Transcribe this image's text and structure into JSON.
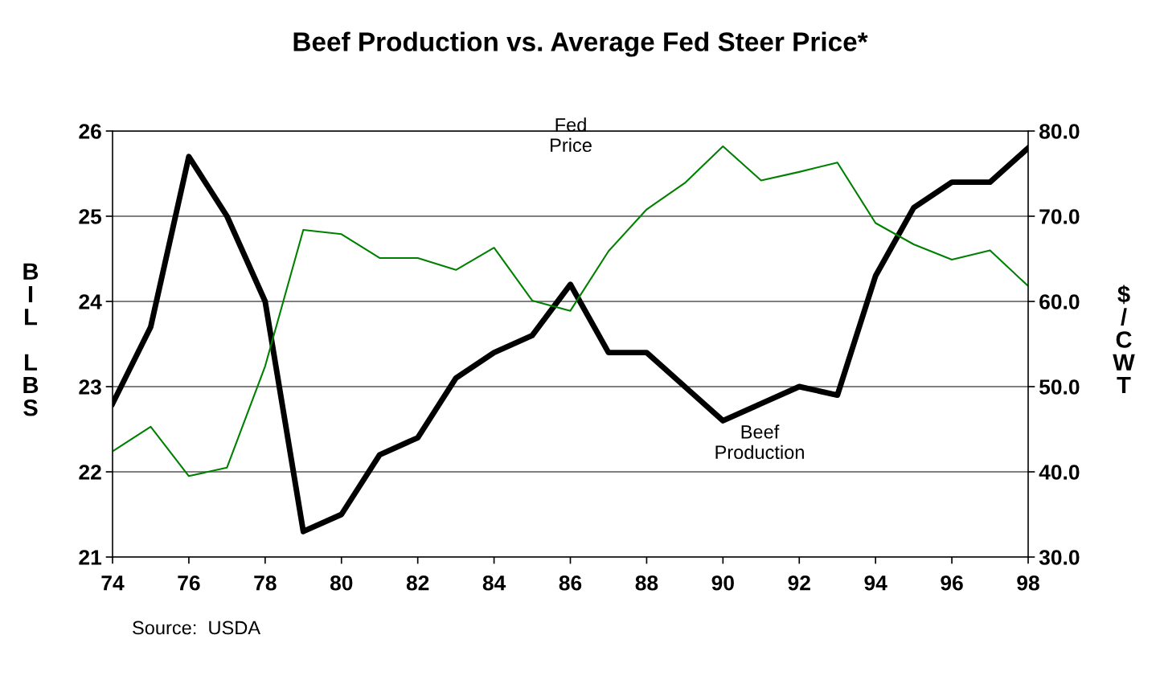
{
  "chart_data": {
    "type": "line",
    "title": "Beef Production vs. Average Fed Steer Price*",
    "ylabel": "BIL LBS",
    "y2label": "$/CWT",
    "x": [
      74,
      75,
      76,
      77,
      78,
      79,
      80,
      81,
      82,
      83,
      84,
      85,
      86,
      87,
      88,
      89,
      90,
      91,
      92,
      93,
      94,
      95,
      96,
      97,
      98
    ],
    "xlim": [
      74,
      98
    ],
    "xticks": [
      74,
      76,
      78,
      80,
      82,
      84,
      86,
      88,
      90,
      92,
      94,
      96,
      98
    ],
    "ylim": [
      21,
      26
    ],
    "yticks": [
      21,
      22,
      23,
      24,
      25,
      26
    ],
    "y2lim": [
      30,
      80
    ],
    "y2ticks": [
      {
        "value": 30,
        "label": "30.0"
      },
      {
        "value": 40,
        "label": "40.0"
      },
      {
        "value": 50,
        "label": "50.0"
      },
      {
        "value": 60,
        "label": "60.0"
      },
      {
        "value": 70,
        "label": "70.0"
      },
      {
        "value": 80,
        "label": "80.0"
      }
    ],
    "grid": "y",
    "legend": false,
    "marker": "none",
    "line_style": "solid",
    "series": [
      {
        "color": "#000000",
        "values": [
          22.8,
          23.7,
          25.7,
          25.0,
          24.0,
          21.3,
          21.5,
          22.2,
          22.4,
          23.1,
          23.4,
          23.6,
          24.2,
          23.4,
          23.4,
          23.0,
          22.6,
          22.8,
          23.0,
          22.9,
          24.3,
          25.1,
          25.4,
          25.4,
          25.8
        ]
      },
      {
        "color": "#008000",
        "axis": "y2",
        "values": [
          42.4,
          45.3,
          39.5,
          40.5,
          52.4,
          68.4,
          67.9,
          65.1,
          65.1,
          63.7,
          66.3,
          60.1,
          58.9,
          65.9,
          70.8,
          73.9,
          78.2,
          74.2,
          75.2,
          76.3,
          69.2,
          66.7,
          64.9,
          66.0,
          61.8
        ]
      }
    ],
    "annotations": [
      "Fed\nPrice",
      "Beef\nProduction",
      "Source:  USDA"
    ]
  }
}
